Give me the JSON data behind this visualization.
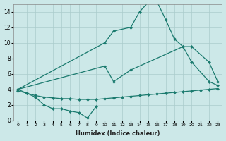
{
  "xlabel": "Humidex (Indice chaleur)",
  "series1_x": [
    0,
    1,
    2,
    3,
    4,
    5,
    6,
    7,
    8,
    9
  ],
  "series1_y": [
    4.0,
    3.5,
    3.0,
    2.0,
    1.5,
    1.5,
    1.2,
    1.0,
    0.3,
    1.8
  ],
  "series2_x": [
    0,
    10,
    11,
    13,
    14,
    15,
    16,
    17,
    18,
    19,
    20,
    22,
    23
  ],
  "series2_y": [
    4.0,
    10.0,
    11.5,
    12.0,
    14.0,
    15.2,
    15.3,
    13.0,
    10.5,
    9.5,
    7.5,
    5.0,
    4.5
  ],
  "series3_x": [
    0,
    10,
    11,
    13,
    19,
    20,
    22,
    23
  ],
  "series3_y": [
    4.0,
    7.0,
    5.0,
    6.5,
    9.5,
    9.5,
    7.5,
    5.0
  ],
  "series4_x": [
    0,
    1,
    2,
    3,
    4,
    5,
    6,
    7,
    8,
    9,
    10,
    11,
    12,
    13,
    14,
    15,
    16,
    17,
    18,
    19,
    20,
    21,
    22,
    23
  ],
  "series4_y": [
    3.8,
    3.5,
    3.2,
    3.0,
    2.9,
    2.8,
    2.8,
    2.7,
    2.7,
    2.7,
    2.8,
    2.9,
    3.0,
    3.1,
    3.2,
    3.3,
    3.4,
    3.5,
    3.6,
    3.7,
    3.8,
    3.9,
    4.0,
    4.1
  ],
  "line_color": "#1a7a6e",
  "bg_color": "#cce8e8",
  "grid_color": "#aacccc",
  "ylim": [
    0,
    15
  ],
  "xlim": [
    -0.5,
    23.5
  ],
  "yticks": [
    0,
    2,
    4,
    6,
    8,
    10,
    12,
    14
  ],
  "xticks": [
    0,
    1,
    2,
    3,
    4,
    5,
    6,
    7,
    8,
    9,
    10,
    11,
    12,
    13,
    14,
    15,
    16,
    17,
    18,
    19,
    20,
    21,
    22,
    23
  ]
}
